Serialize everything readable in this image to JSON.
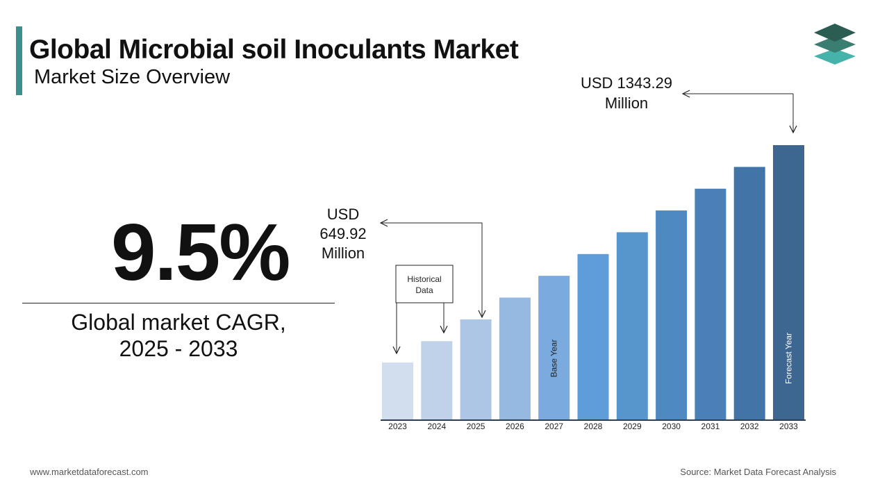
{
  "header": {
    "title": "Global Microbial soil Inoculants Market",
    "subtitle": "Market Size Overview"
  },
  "logo": {
    "icon": "layered-stack-logo-icon"
  },
  "cagr": {
    "value": "9.5%",
    "label_line1": "Global market CAGR,",
    "label_line2": "2025 - 2033"
  },
  "chart_data": {
    "type": "bar",
    "categories": [
      "2023",
      "2024",
      "2025",
      "2026",
      "2027",
      "2028",
      "2029",
      "2030",
      "2031",
      "2032",
      "2033"
    ],
    "values": [
      270,
      370,
      472,
      574,
      676,
      778,
      880,
      982,
      1084,
      1186,
      1288
    ],
    "colors": [
      "#d2ddee",
      "#c0d2ea",
      "#adc6e6",
      "#96b9e1",
      "#7aaade",
      "#5e9dd8",
      "#5795cd",
      "#4f89c2",
      "#4a80b8",
      "#4374a8",
      "#3d6690"
    ],
    "axis_color": "#2c3e50",
    "bar_labels": {
      "4": "Base Year",
      "10": "Forecast Year"
    },
    "annotations": {
      "usd_2025": [
        "USD",
        "649.92",
        "Million"
      ],
      "usd_2033": [
        "USD 1343.29",
        "Million"
      ],
      "historical": [
        "Historical",
        "Data"
      ]
    }
  },
  "footer": {
    "website": "www.marketdataforecast.com",
    "source": "Source: Market Data Forecast Analysis"
  }
}
